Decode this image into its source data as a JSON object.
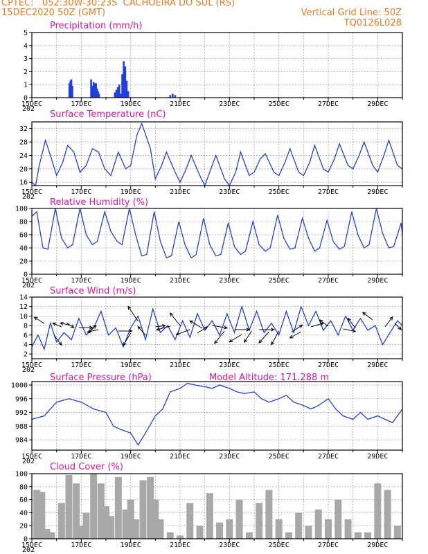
{
  "header": {
    "line1_left": "CPTEC:   052:30W-30:23S  CACHOEIRA DO SUL (RS)",
    "line2_left": "15DEC2020 50Z (GMT)",
    "line2_right": "Vertical Grid Line: 50Z",
    "line3_right": "TQ0126L028"
  },
  "x_tick_labels": [
    "15DEC",
    "17DEC",
    "19DEC",
    "21DEC",
    "23DEC",
    "25DEC",
    "27DEC",
    "29DEC"
  ],
  "x_year_fragment": "202",
  "colors": {
    "header": "#f07820",
    "title": "#e0149c",
    "line": "#1f3fe0",
    "cloud": "#a8a8a8",
    "grid": "#8c8c8c"
  },
  "chart_data": [
    {
      "type": "bar",
      "title": "Precipitation (mm/h)",
      "ylim": [
        0,
        5
      ],
      "yticks": [
        0,
        1,
        2,
        3,
        4,
        5
      ],
      "x_unit": "days since 15DEC",
      "x": [
        1.52,
        1.56,
        1.6,
        1.64,
        2.4,
        2.44,
        2.5,
        2.56,
        2.6,
        2.64,
        2.68,
        2.72,
        3.36,
        3.42,
        3.48,
        3.54,
        3.6,
        3.66,
        3.72,
        3.78,
        3.84,
        3.9,
        5.6,
        5.7,
        5.8
      ],
      "values": [
        1.1,
        1.3,
        1.4,
        0.9,
        1.4,
        0.9,
        1.2,
        1.1,
        1.1,
        0.7,
        0.5,
        0.3,
        0.4,
        0.6,
        0.8,
        1.0,
        0.3,
        1.8,
        2.8,
        2.4,
        1.3,
        0.5,
        0.2,
        0.3,
        0.2
      ]
    },
    {
      "type": "line",
      "title": "Surface Temperature (nC)",
      "ylim": [
        15,
        34
      ],
      "yticks": [
        16,
        20,
        24,
        28,
        32
      ],
      "x_unit": "days since 15DEC",
      "x": [
        0,
        0.15,
        0.3,
        0.55,
        0.75,
        1.0,
        1.25,
        1.45,
        1.7,
        1.95,
        2.2,
        2.45,
        2.7,
        2.95,
        3.2,
        3.5,
        3.8,
        4.0,
        4.25,
        4.45,
        4.8,
        5.0,
        5.25,
        5.45,
        5.8,
        6.0,
        6.25,
        6.45,
        6.8,
        7.0,
        7.25,
        7.45,
        7.8,
        8.0,
        8.25,
        8.45,
        8.8,
        9.0,
        9.25,
        9.45,
        9.8,
        10.0,
        10.25,
        10.45,
        10.8,
        11.0,
        11.25,
        11.45,
        11.8,
        12.0,
        12.25,
        12.45,
        12.8,
        13.0,
        13.25,
        13.45,
        13.8,
        14.0,
        14.25,
        14.45,
        14.8,
        15.0
      ],
      "values": [
        16,
        15,
        21,
        28.5,
        24,
        18,
        22,
        27,
        25,
        19,
        21,
        26,
        25,
        20,
        18,
        25,
        20,
        21,
        30,
        33.5,
        26,
        17,
        21,
        25,
        19,
        16,
        20,
        24,
        18,
        15,
        20,
        24,
        17,
        15,
        19,
        25,
        18,
        19,
        23,
        24.5,
        19,
        18,
        22,
        26,
        19,
        18,
        22,
        27,
        20,
        19,
        23,
        27.5,
        21,
        20,
        24,
        28,
        21,
        19,
        24,
        28.5,
        21,
        20
      ]
    },
    {
      "type": "line",
      "title": "Relative Humidity (%)",
      "ylim": [
        0,
        100
      ],
      "yticks": [
        0,
        20,
        40,
        60,
        80,
        100
      ],
      "x_unit": "days since 15DEC",
      "x": [
        0,
        0.2,
        0.45,
        0.65,
        0.95,
        1.2,
        1.45,
        1.65,
        1.95,
        2.2,
        2.45,
        2.65,
        2.95,
        3.2,
        3.45,
        3.65,
        3.95,
        4.2,
        4.45,
        4.65,
        4.95,
        5.2,
        5.45,
        5.65,
        5.95,
        6.2,
        6.45,
        6.65,
        6.95,
        7.2,
        7.45,
        7.65,
        7.95,
        8.2,
        8.45,
        8.65,
        8.95,
        9.2,
        9.45,
        9.65,
        9.95,
        10.2,
        10.45,
        10.65,
        10.95,
        11.2,
        11.45,
        11.65,
        11.95,
        12.2,
        12.45,
        12.65,
        12.95,
        13.2,
        13.45,
        13.65,
        13.95,
        14.2,
        14.45,
        14.65,
        14.95,
        15.0
      ],
      "values": [
        88,
        95,
        40,
        38,
        100,
        55,
        40,
        45,
        100,
        60,
        45,
        50,
        95,
        65,
        50,
        45,
        100,
        60,
        28,
        30,
        95,
        50,
        25,
        28,
        80,
        45,
        25,
        30,
        85,
        45,
        28,
        30,
        78,
        42,
        30,
        35,
        80,
        45,
        35,
        40,
        90,
        55,
        38,
        40,
        85,
        55,
        35,
        40,
        82,
        50,
        38,
        42,
        95,
        60,
        40,
        45,
        100,
        62,
        40,
        42,
        78,
        60
      ],
      "visible_vectors_unlabeled": true
    },
    {
      "type": "line",
      "title": "Surface Wind (m/s)",
      "ylim": [
        1,
        14
      ],
      "yticks": [
        2,
        4,
        6,
        8,
        10,
        12,
        14
      ],
      "x_unit": "days since 15DEC",
      "x": [
        0,
        0.25,
        0.5,
        0.75,
        1.0,
        1.3,
        1.6,
        1.9,
        2.2,
        2.5,
        2.8,
        3.1,
        3.4,
        3.7,
        4.0,
        4.3,
        4.6,
        4.9,
        5.2,
        5.5,
        5.8,
        6.1,
        6.4,
        6.7,
        7.0,
        7.3,
        7.6,
        7.9,
        8.2,
        8.5,
        8.8,
        9.1,
        9.4,
        9.7,
        10.0,
        10.3,
        10.6,
        10.9,
        11.2,
        11.5,
        11.8,
        12.1,
        12.4,
        12.7,
        13.0,
        13.3,
        13.6,
        13.9,
        14.2,
        14.5,
        14.8,
        15.0
      ],
      "values": [
        3.5,
        6,
        3,
        8.5,
        4.5,
        6.5,
        5,
        9.5,
        6,
        7.5,
        11,
        6,
        7.5,
        3.5,
        7.5,
        10,
        5,
        11.5,
        6.5,
        8,
        5,
        9,
        5.5,
        10.5,
        7,
        9,
        6,
        10.5,
        6.5,
        12,
        7,
        11,
        6.5,
        8.5,
        6,
        11,
        6.5,
        12,
        8,
        11,
        7,
        9,
        6,
        10,
        7,
        9.5,
        7,
        8,
        4,
        6.5,
        9,
        8
      ]
    },
    {
      "type": "line",
      "title": "Surface Pressure (hPa)",
      "annotation": "Model Altitude: 171.288  m",
      "ylim": [
        981,
        1001
      ],
      "yticks": [
        984,
        988,
        992,
        996,
        1000
      ],
      "x_unit": "days since 15DEC",
      "x": [
        0,
        0.5,
        1.0,
        1.5,
        2.0,
        2.5,
        3.0,
        3.3,
        3.6,
        4.0,
        4.3,
        4.6,
        5.0,
        5.3,
        5.6,
        6.0,
        6.3,
        6.6,
        7.0,
        7.3,
        7.6,
        8.0,
        8.3,
        8.6,
        9.0,
        9.3,
        9.6,
        10.0,
        10.3,
        10.6,
        11.0,
        11.3,
        11.6,
        12.0,
        12.3,
        12.6,
        13.0,
        13.3,
        13.6,
        14.0,
        14.3,
        14.6,
        15.0
      ],
      "values": [
        990,
        991,
        995,
        996,
        995,
        993,
        992,
        988,
        987,
        986,
        982.5,
        986,
        991,
        993,
        998,
        999,
        1000.5,
        1000,
        999.5,
        999,
        1000,
        999,
        998,
        997.5,
        998,
        996,
        995,
        996,
        997,
        995,
        994,
        993,
        994,
        996,
        993,
        991,
        990,
        992,
        990,
        991,
        990,
        989,
        993
      ]
    },
    {
      "type": "bar",
      "title": "Cloud Cover (%)",
      "ylim": [
        0,
        100
      ],
      "yticks": [
        0,
        20,
        40,
        60,
        80,
        100
      ],
      "x_unit": "days since 15DEC",
      "x": [
        0.2,
        0.4,
        0.6,
        0.8,
        1.2,
        1.5,
        1.8,
        2.0,
        2.2,
        2.5,
        2.8,
        3.0,
        3.2,
        3.5,
        3.8,
        4.0,
        4.2,
        4.5,
        4.8,
        5.0,
        5.2,
        5.6,
        6.0,
        6.4,
        6.8,
        7.2,
        7.6,
        8.0,
        8.4,
        8.8,
        9.2,
        9.6,
        10.0,
        10.4,
        10.8,
        11.2,
        11.6,
        12.0,
        12.4,
        12.8,
        13.2,
        13.6,
        14.0,
        14.4,
        14.8
      ],
      "values": [
        75,
        72,
        15,
        10,
        55,
        98,
        85,
        20,
        40,
        100,
        85,
        50,
        35,
        95,
        45,
        60,
        30,
        90,
        95,
        60,
        30,
        10,
        5,
        55,
        20,
        70,
        25,
        30,
        60,
        10,
        55,
        75,
        30,
        10,
        40,
        20,
        45,
        30,
        60,
        30,
        10,
        10,
        85,
        75,
        20
      ]
    }
  ]
}
